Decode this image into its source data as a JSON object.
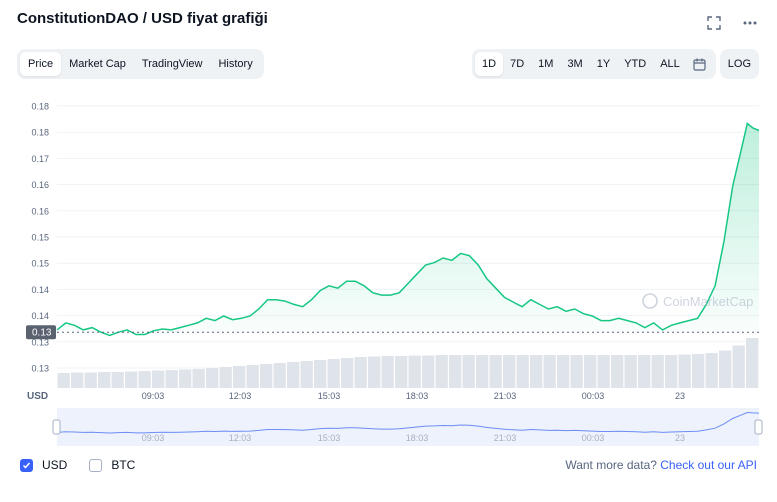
{
  "header": {
    "title": "ConstitutionDAO / USD fiyat grafiği"
  },
  "tabs": [
    {
      "label": "Price",
      "active": true
    },
    {
      "label": "Market Cap",
      "active": false
    },
    {
      "label": "TradingView",
      "active": false
    },
    {
      "label": "History",
      "active": false
    }
  ],
  "ranges": [
    {
      "label": "1D",
      "active": true
    },
    {
      "label": "7D",
      "active": false
    },
    {
      "label": "1M",
      "active": false
    },
    {
      "label": "3M",
      "active": false
    },
    {
      "label": "1Y",
      "active": false
    },
    {
      "label": "YTD",
      "active": false
    },
    {
      "label": "ALL",
      "active": false
    }
  ],
  "log_label": "LOG",
  "watermark": "CoinMarketCap",
  "colors": {
    "up": "#16c784",
    "down": "#ea3943",
    "accent": "#3861fb",
    "brush": "#6b8df5"
  },
  "chart_data": {
    "type": "line",
    "currency_label": "USD",
    "y_ticks": [
      "0.18",
      "0.18",
      "0.17",
      "0.16",
      "0.16",
      "0.15",
      "0.15",
      "0.14",
      "0.14",
      "0.13",
      "0.13"
    ],
    "x_ticks": [
      "09:03",
      "12:03",
      "15:03",
      "18:03",
      "21:03",
      "00:03",
      "23"
    ],
    "reference_label": "0.13",
    "reference_value": 0.1325,
    "ylim": [
      0.125,
      0.183
    ],
    "x_range": [
      0,
      24
    ],
    "series": [
      {
        "values": [
          [
            0.0,
            0.133
          ],
          [
            0.3,
            0.1345
          ],
          [
            0.6,
            0.134
          ],
          [
            0.9,
            0.133
          ],
          [
            1.2,
            0.1335
          ],
          [
            1.5,
            0.1325
          ],
          [
            1.8,
            0.1318
          ],
          [
            2.1,
            0.1325
          ],
          [
            2.4,
            0.133
          ],
          [
            2.7,
            0.132
          ],
          [
            3.0,
            0.132
          ],
          [
            3.3,
            0.1328
          ],
          [
            3.6,
            0.1332
          ],
          [
            3.9,
            0.133
          ],
          [
            4.2,
            0.1335
          ],
          [
            4.5,
            0.134
          ],
          [
            4.8,
            0.1345
          ],
          [
            5.1,
            0.1355
          ],
          [
            5.4,
            0.135
          ],
          [
            5.7,
            0.136
          ],
          [
            6.0,
            0.1352
          ],
          [
            6.3,
            0.1355
          ],
          [
            6.6,
            0.136
          ],
          [
            6.9,
            0.1375
          ],
          [
            7.2,
            0.1395
          ],
          [
            7.5,
            0.1395
          ],
          [
            7.8,
            0.1392
          ],
          [
            8.1,
            0.1385
          ],
          [
            8.4,
            0.138
          ],
          [
            8.7,
            0.1395
          ],
          [
            9.0,
            0.1415
          ],
          [
            9.3,
            0.1425
          ],
          [
            9.6,
            0.142
          ],
          [
            9.9,
            0.1435
          ],
          [
            10.2,
            0.1435
          ],
          [
            10.5,
            0.1425
          ],
          [
            10.8,
            0.141
          ],
          [
            11.1,
            0.1405
          ],
          [
            11.4,
            0.1405
          ],
          [
            11.7,
            0.141
          ],
          [
            12.0,
            0.143
          ],
          [
            12.3,
            0.145
          ],
          [
            12.6,
            0.147
          ],
          [
            12.9,
            0.1475
          ],
          [
            13.2,
            0.1485
          ],
          [
            13.5,
            0.148
          ],
          [
            13.8,
            0.1495
          ],
          [
            14.1,
            0.149
          ],
          [
            14.4,
            0.147
          ],
          [
            14.7,
            0.144
          ],
          [
            15.0,
            0.142
          ],
          [
            15.3,
            0.14
          ],
          [
            15.6,
            0.139
          ],
          [
            15.9,
            0.138
          ],
          [
            16.2,
            0.1395
          ],
          [
            16.5,
            0.1385
          ],
          [
            16.8,
            0.1375
          ],
          [
            17.1,
            0.138
          ],
          [
            17.4,
            0.137
          ],
          [
            17.7,
            0.1375
          ],
          [
            18.0,
            0.1365
          ],
          [
            18.3,
            0.136
          ],
          [
            18.6,
            0.135
          ],
          [
            18.9,
            0.135
          ],
          [
            19.2,
            0.1355
          ],
          [
            19.5,
            0.135
          ],
          [
            19.8,
            0.1345
          ],
          [
            20.1,
            0.1335
          ],
          [
            20.4,
            0.1345
          ],
          [
            20.7,
            0.133
          ],
          [
            21.0,
            0.134
          ],
          [
            21.3,
            0.1345
          ],
          [
            21.6,
            0.135
          ],
          [
            21.9,
            0.1355
          ],
          [
            22.2,
            0.1385
          ],
          [
            22.5,
            0.1425
          ],
          [
            22.8,
            0.152
          ],
          [
            23.1,
            0.164
          ],
          [
            23.4,
            0.172
          ],
          [
            23.6,
            0.1775
          ],
          [
            23.8,
            0.1765
          ],
          [
            24.0,
            0.176
          ]
        ]
      }
    ],
    "volume": [
      0.3,
      0.31,
      0.31,
      0.32,
      0.32,
      0.33,
      0.34,
      0.35,
      0.36,
      0.37,
      0.38,
      0.4,
      0.42,
      0.44,
      0.46,
      0.48,
      0.5,
      0.52,
      0.54,
      0.56,
      0.58,
      0.6,
      0.62,
      0.63,
      0.64,
      0.64,
      0.65,
      0.65,
      0.66,
      0.66,
      0.66,
      0.66,
      0.66,
      0.66,
      0.66,
      0.66,
      0.66,
      0.66,
      0.66,
      0.66,
      0.66,
      0.66,
      0.66,
      0.66,
      0.66,
      0.66,
      0.67,
      0.68,
      0.7,
      0.75,
      0.85,
      1.0
    ]
  },
  "footer": {
    "currencies": [
      {
        "label": "USD",
        "checked": true
      },
      {
        "label": "BTC",
        "checked": false
      }
    ],
    "api_text": "Want more data?",
    "api_link": "Check out our API"
  }
}
